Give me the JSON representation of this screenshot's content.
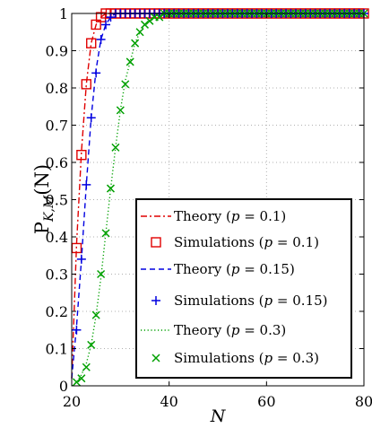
{
  "chart_data": {
    "type": "line",
    "xlabel": "N",
    "ylabel": "P_{K,M}(N)",
    "ylabel_main": "P",
    "ylabel_sub": "K,M",
    "ylabel_arg": "(N)",
    "xlim": [
      20,
      80
    ],
    "ylim": [
      0,
      1
    ],
    "xticks": [
      20,
      40,
      60,
      80
    ],
    "yticks": [
      0,
      0.1,
      0.2,
      0.3,
      0.4,
      0.5,
      0.6,
      0.7,
      0.8,
      0.9,
      1
    ],
    "x_tick_labels": [
      "20",
      "40",
      "60",
      "80"
    ],
    "y_tick_labels": [
      "0",
      "0.1",
      "0.2",
      "0.3",
      "0.4",
      "0.5",
      "0.6",
      "0.7",
      "0.8",
      "0.9",
      "1"
    ],
    "grid": true,
    "legend_position": "bottom-right",
    "series": [
      {
        "name": "Theory (p = 0.1)",
        "kind": "line",
        "style": "dashdot",
        "color": "#e00000",
        "x": [
          20,
          21,
          22,
          23,
          24,
          25,
          26,
          27,
          28,
          29,
          30,
          35,
          40,
          50,
          60,
          70,
          80
        ],
        "y": [
          0.02,
          0.38,
          0.63,
          0.81,
          0.92,
          0.97,
          0.99,
          1,
          1,
          1,
          1,
          1,
          1,
          1,
          1,
          1,
          1
        ]
      },
      {
        "name": "Simulations (p = 0.1)",
        "kind": "marker",
        "marker": "square",
        "color": "#e00000",
        "x": [
          21,
          22,
          23,
          24,
          25,
          26,
          27,
          28,
          29,
          30,
          31,
          32,
          33,
          34,
          35,
          36,
          37,
          38,
          39,
          40,
          41,
          42,
          43,
          44,
          45,
          46,
          47,
          48,
          49,
          50,
          51,
          52,
          53,
          54,
          55,
          56,
          57,
          58,
          59,
          60,
          61,
          62,
          63,
          64,
          65,
          66,
          67,
          68,
          69,
          70,
          71,
          72,
          73,
          74,
          75,
          76,
          77,
          78,
          79,
          80
        ],
        "y": [
          0.37,
          0.62,
          0.81,
          0.92,
          0.97,
          0.99,
          1,
          1,
          1,
          1,
          1,
          1,
          1,
          1,
          1,
          1,
          1,
          1,
          1,
          1,
          1,
          1,
          1,
          1,
          1,
          1,
          1,
          1,
          1,
          1,
          1,
          1,
          1,
          1,
          1,
          1,
          1,
          1,
          1,
          1,
          1,
          1,
          1,
          1,
          1,
          1,
          1,
          1,
          1,
          1,
          1,
          1,
          1,
          1,
          1,
          1,
          1,
          1,
          1,
          1
        ]
      },
      {
        "name": "Theory (p = 0.15)",
        "kind": "line",
        "style": "dashed",
        "color": "#0000e0",
        "x": [
          20,
          21,
          22,
          23,
          24,
          25,
          26,
          27,
          28,
          29,
          30,
          32,
          35,
          40,
          50,
          60,
          70,
          80
        ],
        "y": [
          0.02,
          0.16,
          0.34,
          0.54,
          0.72,
          0.85,
          0.93,
          0.97,
          0.99,
          1,
          1,
          1,
          1,
          1,
          1,
          1,
          1,
          1
        ]
      },
      {
        "name": "Simulations (p = 0.15)",
        "kind": "marker",
        "marker": "plus",
        "color": "#0000e0",
        "x": [
          21,
          22,
          23,
          24,
          25,
          26,
          27,
          28,
          29,
          30,
          31,
          32,
          33,
          34,
          35,
          36,
          37,
          38,
          39,
          40,
          41,
          42,
          43,
          44,
          45,
          46,
          47,
          48,
          49,
          50,
          51,
          52,
          53,
          54,
          55,
          56,
          57,
          58,
          59,
          60,
          61,
          62,
          63,
          64,
          65,
          66,
          67,
          68,
          69,
          70,
          71,
          72,
          73,
          74,
          75,
          76,
          77,
          78,
          79,
          80
        ],
        "y": [
          0.15,
          0.34,
          0.54,
          0.72,
          0.84,
          0.93,
          0.97,
          0.99,
          1,
          1,
          1,
          1,
          1,
          1,
          1,
          1,
          1,
          1,
          1,
          1,
          1,
          1,
          1,
          1,
          1,
          1,
          1,
          1,
          1,
          1,
          1,
          1,
          1,
          1,
          1,
          1,
          1,
          1,
          1,
          1,
          1,
          1,
          1,
          1,
          1,
          1,
          1,
          1,
          1,
          1,
          1,
          1,
          1,
          1,
          1,
          1,
          1,
          1,
          1,
          1
        ]
      },
      {
        "name": "Theory (p = 0.3)",
        "kind": "line",
        "style": "dotted",
        "color": "#00a000",
        "x": [
          20,
          21,
          22,
          23,
          24,
          25,
          26,
          27,
          28,
          29,
          30,
          31,
          32,
          33,
          34,
          35,
          36,
          37,
          38,
          39,
          40,
          45,
          50,
          60,
          70,
          80
        ],
        "y": [
          0.0,
          0.01,
          0.03,
          0.06,
          0.11,
          0.19,
          0.29,
          0.41,
          0.53,
          0.64,
          0.74,
          0.82,
          0.87,
          0.92,
          0.95,
          0.97,
          0.98,
          0.99,
          0.99,
          1,
          1,
          1,
          1,
          1,
          1,
          1
        ]
      },
      {
        "name": "Simulations (p = 0.3)",
        "kind": "marker",
        "marker": "x",
        "color": "#00a000",
        "x": [
          21,
          22,
          23,
          24,
          25,
          26,
          27,
          28,
          29,
          30,
          31,
          32,
          33,
          34,
          35,
          36,
          37,
          38,
          39,
          40,
          41,
          42,
          43,
          44,
          45,
          46,
          47,
          48,
          49,
          50,
          51,
          52,
          53,
          54,
          55,
          56,
          57,
          58,
          59,
          60,
          61,
          62,
          63,
          64,
          65,
          66,
          67,
          68,
          69,
          70,
          71,
          72,
          73,
          74,
          75,
          76,
          77,
          78,
          79,
          80
        ],
        "y": [
          0.01,
          0.02,
          0.05,
          0.11,
          0.19,
          0.3,
          0.41,
          0.53,
          0.64,
          0.74,
          0.81,
          0.87,
          0.92,
          0.95,
          0.97,
          0.98,
          0.99,
          0.99,
          1,
          1,
          1,
          1,
          1,
          1,
          1,
          1,
          1,
          1,
          1,
          1,
          1,
          1,
          1,
          1,
          1,
          1,
          1,
          1,
          1,
          1,
          1,
          1,
          1,
          1,
          1,
          1,
          1,
          1,
          1,
          1,
          1,
          1,
          1,
          1,
          1,
          1,
          1,
          1,
          1,
          1
        ]
      }
    ],
    "legend": [
      {
        "prefix": "Theory (",
        "param": "p",
        "suffix": " = 0.1)"
      },
      {
        "prefix": "Simulations (",
        "param": "p",
        "suffix": " = 0.1)"
      },
      {
        "prefix": "Theory (",
        "param": "p",
        "suffix": " = 0.15)"
      },
      {
        "prefix": "Simulations (",
        "param": "p",
        "suffix": " = 0.15)"
      },
      {
        "prefix": "Theory (",
        "param": "p",
        "suffix": " = 0.3)"
      },
      {
        "prefix": "Simulations (",
        "param": "p",
        "suffix": " = 0.3)"
      }
    ]
  }
}
